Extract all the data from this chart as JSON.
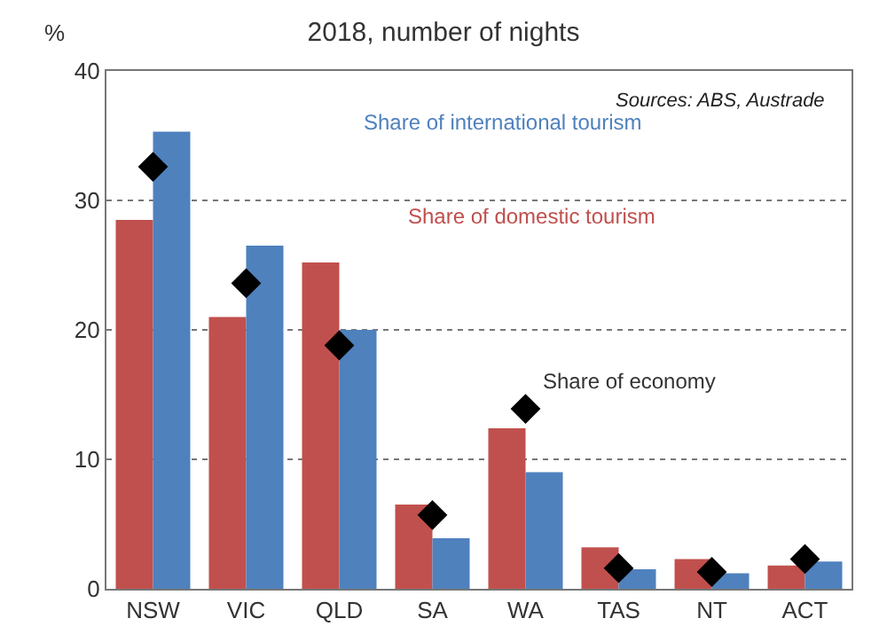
{
  "chart_data": {
    "type": "bar",
    "title": "2018, number of nights",
    "ylabel": "%",
    "categories": [
      "NSW",
      "VIC",
      "QLD",
      "SA",
      "WA",
      "TAS",
      "NT",
      "ACT"
    ],
    "series": [
      {
        "name": "Share of domestic tourism",
        "color": "#c0504d",
        "values": [
          28.5,
          21,
          25.2,
          6.5,
          12.4,
          3.2,
          2.3,
          1.8
        ]
      },
      {
        "name": "Share of international tourism",
        "color": "#4f81bd",
        "values": [
          35.3,
          26.5,
          20,
          3.9,
          9.0,
          1.5,
          1.2,
          2.1
        ]
      },
      {
        "name": "Share of economy",
        "type": "scatter",
        "marker": "diamond",
        "color": "#000000",
        "values": [
          32.6,
          23.6,
          18.8,
          5.7,
          13.9,
          1.6,
          1.3,
          2.3
        ]
      }
    ],
    "ylim": [
      0,
      40
    ],
    "yticks": [
      0,
      10,
      20,
      30,
      40
    ],
    "grid": "y",
    "legend": false,
    "annotations": [
      "Sources: ABS, Austrade"
    ]
  }
}
